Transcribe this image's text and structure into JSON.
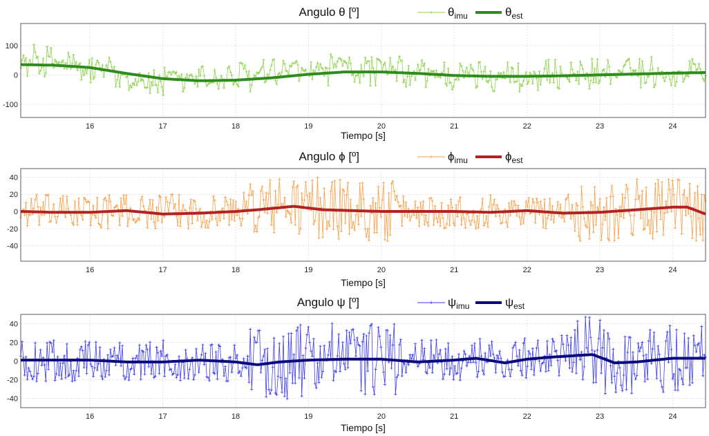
{
  "chart_data": [
    {
      "type": "line",
      "title": "Angulo θ [º]",
      "xlabel": "Tiempo [s]",
      "ylabel": "",
      "xlim": [
        15.05,
        24.45
      ],
      "ylim": [
        -145,
        175
      ],
      "xticks": [
        16,
        17,
        18,
        19,
        20,
        21,
        22,
        23,
        24
      ],
      "yticks": [
        -100,
        0,
        100
      ],
      "grid": true,
      "legend_position": "top",
      "imu_color": "#8fd14f",
      "est_color": "#2e8b1e",
      "series": [
        {
          "name": "θimu",
          "name_main": "θ",
          "name_sub": "imu",
          "style": "thin-markers",
          "noise_amplitude": 55,
          "x": [
            15.05,
            15.3,
            15.6,
            16.0,
            16.5,
            16.8,
            17.0,
            17.5,
            18.0,
            18.5,
            19.0,
            19.5,
            20.0,
            20.5,
            21.0,
            21.5,
            22.0,
            22.5,
            23.0,
            23.5,
            24.0,
            24.45
          ],
          "y": [
            45,
            50,
            40,
            20,
            -5,
            -20,
            -30,
            -15,
            -10,
            5,
            10,
            20,
            15,
            5,
            -5,
            0,
            -5,
            0,
            5,
            10,
            10,
            15
          ]
        },
        {
          "name": "θest",
          "name_main": "θ",
          "name_sub": "est",
          "style": "thick",
          "x": [
            15.05,
            15.5,
            16.0,
            16.5,
            17.0,
            17.5,
            18.0,
            18.5,
            19.0,
            19.5,
            20.0,
            20.5,
            21.0,
            21.5,
            22.0,
            22.5,
            23.0,
            23.5,
            24.0,
            24.45
          ],
          "y": [
            35,
            33,
            25,
            5,
            -13,
            -20,
            -18,
            -10,
            2,
            10,
            10,
            5,
            -2,
            -5,
            -5,
            -3,
            0,
            3,
            6,
            8
          ]
        }
      ]
    },
    {
      "type": "line",
      "title": "Angulo ϕ [º]",
      "xlabel": "Tiempo [s]",
      "ylabel": "",
      "xlim": [
        15.05,
        24.45
      ],
      "ylim": [
        -58,
        50
      ],
      "xticks": [
        16,
        17,
        18,
        19,
        20,
        21,
        22,
        23,
        24
      ],
      "yticks": [
        -40,
        -20,
        0,
        20,
        40
      ],
      "grid": true,
      "legend_position": "top",
      "imu_color": "#f5a04a",
      "est_color": "#b22222",
      "series": [
        {
          "name": "ϕimu",
          "name_main": "ϕ",
          "name_sub": "imu",
          "style": "thin-markers",
          "noise_amplitude": 20,
          "x": [
            15.05,
            16.0,
            17.0,
            18.0,
            18.2,
            18.8,
            19.5,
            20.0,
            21.0,
            22.0,
            22.6,
            23.0,
            23.5,
            24.0,
            24.45
          ],
          "y": [
            0,
            0,
            0,
            0,
            5,
            6,
            3,
            0,
            0,
            0,
            0,
            0,
            3,
            5,
            -2
          ]
        },
        {
          "name": "ϕest",
          "name_main": "ϕ",
          "name_sub": "est",
          "style": "thick",
          "x": [
            15.05,
            15.5,
            16.0,
            16.5,
            17.0,
            17.5,
            18.0,
            18.3,
            18.8,
            19.2,
            20.0,
            20.5,
            21.0,
            21.5,
            22.0,
            22.5,
            23.0,
            23.5,
            24.0,
            24.2,
            24.45
          ],
          "y": [
            0,
            -1,
            -1,
            1,
            -3,
            -2,
            0,
            2,
            6,
            2,
            0,
            0,
            0,
            -1,
            1,
            -2,
            -1,
            2,
            5,
            5,
            -3
          ]
        }
      ]
    },
    {
      "type": "line",
      "title": "Angulo ψ [º]",
      "xlabel": "Tiempo [s]",
      "ylabel": "",
      "xlim": [
        15.05,
        24.45
      ],
      "ylim": [
        -50,
        50
      ],
      "xticks": [
        16,
        17,
        18,
        19,
        20,
        21,
        22,
        23,
        24
      ],
      "yticks": [
        -40,
        -20,
        0,
        20,
        40
      ],
      "grid": true,
      "legend_position": "top",
      "imu_color": "#3b3bf0",
      "est_color": "#0a0a7a",
      "series": [
        {
          "name": "ψimu",
          "name_main": "ψ",
          "name_sub": "imu",
          "style": "thin-markers",
          "noise_amplitude": 22,
          "x": [
            15.05,
            16.0,
            17.0,
            18.0,
            18.3,
            19.0,
            20.0,
            21.0,
            22.0,
            22.8,
            23.5,
            24.0,
            24.45
          ],
          "y": [
            0,
            0,
            0,
            0,
            -5,
            2,
            2,
            1,
            3,
            8,
            -2,
            4,
            3
          ]
        },
        {
          "name": "ψest",
          "name_main": "ψ",
          "name_sub": "est",
          "style": "thick",
          "x": [
            15.05,
            15.5,
            16.0,
            16.5,
            17.0,
            17.5,
            18.0,
            18.3,
            18.6,
            19.0,
            19.5,
            20.0,
            20.5,
            21.0,
            21.3,
            21.7,
            22.0,
            22.3,
            22.7,
            22.9,
            23.2,
            23.5,
            24.0,
            24.45
          ],
          "y": [
            1,
            1,
            1,
            -1,
            -1,
            1,
            -1,
            -4,
            -1,
            1,
            2,
            2,
            -1,
            1,
            3,
            -2,
            2,
            4,
            6,
            7,
            -2,
            -1,
            3,
            3
          ]
        }
      ]
    }
  ]
}
